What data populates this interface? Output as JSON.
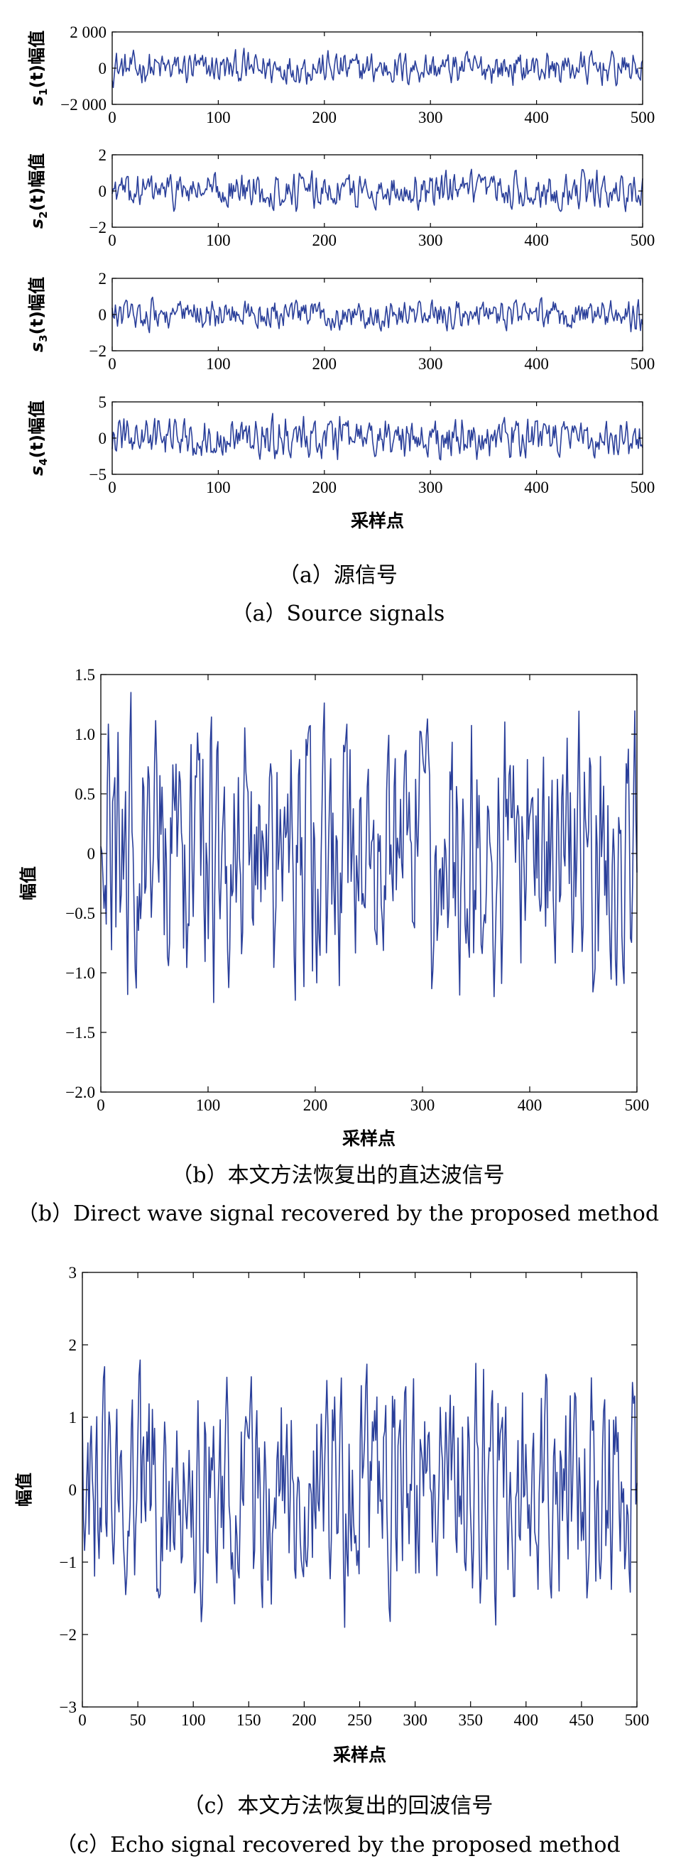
{
  "chart_data": [
    {
      "id": "s1",
      "type": "line",
      "ylabel": "s1(t)幅值",
      "ylabel_parts": {
        "sym": "s",
        "sub": "1",
        "rest": "(t)幅值"
      },
      "xlabel": "",
      "xlim": [
        0,
        500
      ],
      "ylim": [
        -2000,
        2000
      ],
      "xticks": [
        0,
        100,
        200,
        300,
        400,
        500
      ],
      "yticks": [
        -2000,
        0,
        2000
      ],
      "yticklabels": [
        "−2 000",
        "0",
        "2 000"
      ],
      "series": [
        {
          "x": [
            0,
            500
          ],
          "amplitude": 1100,
          "noise": "pseudo-random",
          "samples": 500
        }
      ]
    },
    {
      "id": "s2",
      "type": "line",
      "ylabel": "s2(t)幅值",
      "ylabel_parts": {
        "sym": "s",
        "sub": "2",
        "rest": "(t)幅值"
      },
      "xlabel": "",
      "xlim": [
        0,
        500
      ],
      "ylim": [
        -2,
        2
      ],
      "xticks": [
        0,
        100,
        200,
        300,
        400,
        500
      ],
      "yticks": [
        -2,
        0,
        2
      ],
      "yticklabels": [
        "−2",
        "0",
        "2"
      ],
      "series": [
        {
          "x": [
            0,
            500
          ],
          "amplitude": 1.2,
          "noise": "pseudo-random",
          "samples": 500
        }
      ]
    },
    {
      "id": "s3",
      "type": "line",
      "ylabel": "s3(t)幅值",
      "ylabel_parts": {
        "sym": "s",
        "sub": "3",
        "rest": "(t)幅值"
      },
      "xlabel": "",
      "xlim": [
        0,
        500
      ],
      "ylim": [
        -2,
        2
      ],
      "xticks": [
        0,
        100,
        200,
        300,
        400,
        500
      ],
      "yticks": [
        -2,
        0,
        2
      ],
      "yticklabels": [
        "−2",
        "0",
        "2"
      ],
      "series": [
        {
          "x": [
            0,
            500
          ],
          "amplitude": 1.0,
          "noise": "pseudo-random",
          "samples": 500
        }
      ]
    },
    {
      "id": "s4",
      "type": "line",
      "ylabel": "s4(t)幅值",
      "ylabel_parts": {
        "sym": "s",
        "sub": "4",
        "rest": "(t)幅值"
      },
      "xlabel": "采样点",
      "xlim": [
        0,
        500
      ],
      "ylim": [
        -5,
        5
      ],
      "xticks": [
        0,
        100,
        200,
        300,
        400,
        500
      ],
      "yticks": [
        -5,
        0,
        5
      ],
      "yticklabels": [
        "−5",
        "0",
        "5"
      ],
      "series": [
        {
          "x": [
            0,
            500
          ],
          "amplitude": 3.4,
          "noise": "pseudo-random",
          "samples": 500
        }
      ]
    },
    {
      "id": "b",
      "type": "line",
      "ylabel": "幅值",
      "xlabel": "采样点",
      "xlim": [
        0,
        500
      ],
      "ylim": [
        -2.0,
        1.5
      ],
      "xticks": [
        0,
        100,
        200,
        300,
        400,
        500
      ],
      "yticks": [
        -2.0,
        -1.5,
        -1.0,
        -0.5,
        0,
        0.5,
        1.0,
        1.5
      ],
      "yticklabels": [
        "−2.0",
        "−1.5",
        "−1.0",
        "−0.5",
        "0",
        "0.5",
        "1.0",
        "1.5"
      ],
      "series": [
        {
          "x": [
            0,
            500
          ],
          "amplitude": 1.35,
          "noise": "pseudo-random",
          "samples": 500
        }
      ]
    },
    {
      "id": "c",
      "type": "line",
      "ylabel": "幅值",
      "xlabel": "采样点",
      "xlim": [
        0,
        500
      ],
      "ylim": [
        -3,
        3
      ],
      "xticks": [
        0,
        50,
        100,
        150,
        200,
        250,
        300,
        350,
        400,
        450,
        500
      ],
      "yticks": [
        -3,
        -2,
        -1,
        0,
        1,
        2,
        3
      ],
      "yticklabels": [
        "−3",
        "−2",
        "−1",
        "0",
        "1",
        "2",
        "3"
      ],
      "series": [
        {
          "x": [
            0,
            500
          ],
          "amplitude": 1.9,
          "noise": "pseudo-random",
          "samples": 500
        }
      ]
    }
  ],
  "captions": {
    "a_cn": "（a）源信号",
    "a_en": "（a）Source signals",
    "b_cn": "（b）本文方法恢复出的直达波信号",
    "b_en": "（b）Direct wave signal recovered by the proposed method",
    "c_cn": "（c）本文方法恢复出的回波信号",
    "c_en": "（c）Echo signal recovered by the proposed method"
  },
  "colors": {
    "trace": "#2a3f9a",
    "axes": "#000000",
    "background": "#ffffff"
  }
}
